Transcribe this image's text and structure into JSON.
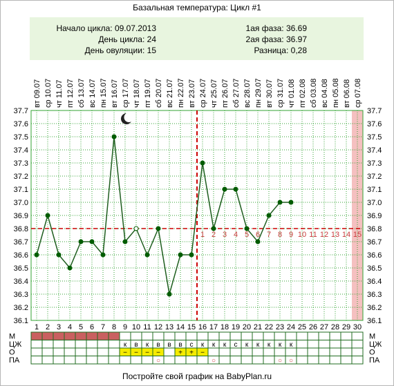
{
  "title": "Базальная температура: Цикл #1",
  "info": {
    "left": [
      {
        "label": "Начало цикла:",
        "value": "09.07.2013"
      },
      {
        "label": "День цикла:",
        "value": "24"
      },
      {
        "label": "День овуляции:",
        "value": "15"
      }
    ],
    "right": [
      {
        "label": "1ая фаза:",
        "value": "36.69"
      },
      {
        "label": "2ая фаза:",
        "value": "36.97"
      },
      {
        "label": "Разница:",
        "value": "0,28"
      }
    ]
  },
  "chart_data": {
    "type": "line",
    "x": [
      1,
      2,
      3,
      4,
      5,
      6,
      7,
      8,
      9,
      10,
      11,
      12,
      13,
      14,
      15,
      16,
      17,
      18,
      19,
      20,
      21,
      22,
      23,
      24
    ],
    "y": [
      36.6,
      36.9,
      36.6,
      36.5,
      36.7,
      36.7,
      36.6,
      37.5,
      36.7,
      36.8,
      36.6,
      36.8,
      36.3,
      36.6,
      36.6,
      37.3,
      36.8,
      37.1,
      37.1,
      36.8,
      36.7,
      36.9,
      37.0,
      37.0
    ],
    "hollow_points": [
      10
    ],
    "ylim": [
      36.1,
      37.7
    ],
    "yticks": [
      "36.1",
      "36.2",
      "36.3",
      "36.4",
      "36.5",
      "36.6",
      "36.7",
      "36.8",
      "36.9",
      "37.0",
      "37.1",
      "37.2",
      "37.3",
      "37.4",
      "37.5",
      "37.6",
      "37.7"
    ],
    "xticks": [
      "1",
      "2",
      "3",
      "4",
      "5",
      "6",
      "7",
      "8",
      "9",
      "10",
      "11",
      "12",
      "13",
      "14",
      "15",
      "16",
      "17",
      "18",
      "19",
      "20",
      "21",
      "22",
      "23",
      "24",
      "25",
      "26",
      "27",
      "28",
      "29",
      "30"
    ],
    "dates": [
      "09.07",
      "10.07",
      "11.07",
      "12.07",
      "13.07",
      "14.07",
      "15.07",
      "16.07",
      "17.07",
      "18.07",
      "19.07",
      "20.07",
      "21.07",
      "22.07",
      "23.07",
      "24.07",
      "25.07",
      "26.07",
      "27.07",
      "28.07",
      "29.07",
      "30.07",
      "31.07",
      "01.08",
      "02.08",
      "03.08",
      "04.08",
      "05.08",
      "06.08",
      "07.08"
    ],
    "weekdays": [
      "вт",
      "ср",
      "чт",
      "пт",
      "сб",
      "вс",
      "пн",
      "вт",
      "ср",
      "чт",
      "пт",
      "сб",
      "вс",
      "пн",
      "вт",
      "ср",
      "чт",
      "пт",
      "сб",
      "вс",
      "пн",
      "вт",
      "ср",
      "чт",
      "пт",
      "сб",
      "вс",
      "пн",
      "вт",
      "ср"
    ],
    "coverline": 36.8,
    "ovulation_day": 15,
    "highlight_day": 30,
    "phase_labels": [
      "1",
      "2",
      "3",
      "4",
      "5",
      "6",
      "7",
      "8",
      "9",
      "10",
      "11",
      "12",
      "13",
      "14",
      "15"
    ],
    "grid": true,
    "moon_day": 9,
    "colors": {
      "line": "#1e5e1e",
      "point": "#005c00",
      "grid": "#33a333",
      "coverline": "#cc0000",
      "ovulation": "#cc0000",
      "highlight": "#f5c0c0",
      "phase_text": "#c83c3c",
      "menses": "#c96060",
      "os_fill": "#f5eb00"
    }
  },
  "table": {
    "row_labels": [
      "М",
      "ЦЖ",
      "О",
      "ПА"
    ],
    "menses_days": 8,
    "cm": [
      "",
      "",
      "",
      "",
      "",
      "",
      "",
      "",
      "к",
      "в",
      "к",
      "в",
      "в",
      "в",
      "с",
      "к",
      "к",
      "к",
      "с",
      "к",
      "к",
      "к",
      "к",
      "к",
      "",
      "",
      "",
      "",
      "",
      ""
    ],
    "os_days": [
      9,
      10,
      11,
      12,
      14,
      15,
      16
    ],
    "os_symbols": [
      "−",
      "−",
      "−",
      "−",
      "+",
      "+",
      "−"
    ],
    "pa_days": [
      12,
      17,
      23,
      24
    ],
    "pa_symbol": "○"
  },
  "footer": "Постройте свой график на BabyPlan.ru"
}
